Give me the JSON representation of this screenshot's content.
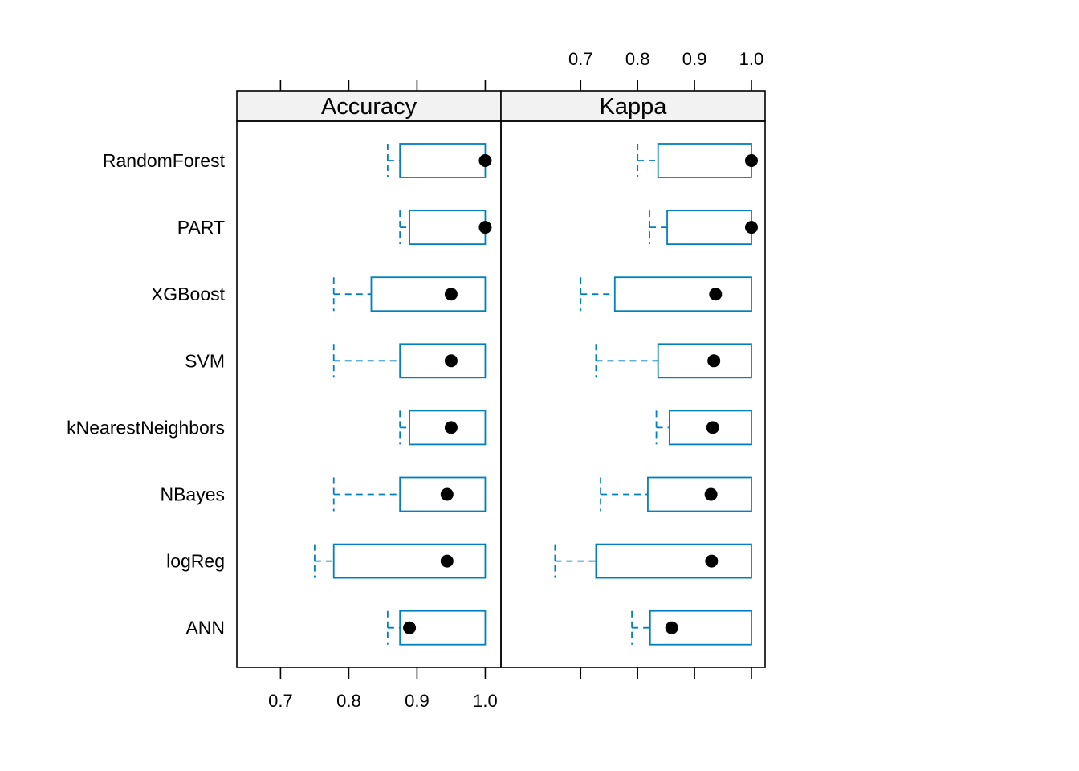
{
  "chart_data": {
    "type": "boxplot",
    "categories": [
      "RandomForest",
      "PART",
      "XGBoost",
      "SVM",
      "kNearestNeighbors",
      "NBayes",
      "logReg",
      "ANN"
    ],
    "panels": [
      {
        "title": "Accuracy",
        "xlim": [
          0.636,
          1.023
        ],
        "ticks": [
          0.7,
          0.8,
          0.9,
          1.0
        ],
        "tick_labels": [
          "0.7",
          "0.8",
          "0.9",
          "1.0"
        ],
        "boxes": [
          {
            "min": 0.857,
            "q1": 0.875,
            "median": 1.0,
            "q3": 1.0,
            "max": 1.0
          },
          {
            "min": 0.875,
            "q1": 0.889,
            "median": 1.0,
            "q3": 1.0,
            "max": 1.0
          },
          {
            "min": 0.778,
            "q1": 0.833,
            "median": 0.95,
            "q3": 1.0,
            "max": 1.0
          },
          {
            "min": 0.778,
            "q1": 0.875,
            "median": 0.95,
            "q3": 1.0,
            "max": 1.0
          },
          {
            "min": 0.875,
            "q1": 0.889,
            "median": 0.95,
            "q3": 1.0,
            "max": 1.0
          },
          {
            "min": 0.778,
            "q1": 0.875,
            "median": 0.944,
            "q3": 1.0,
            "max": 1.0
          },
          {
            "min": 0.75,
            "q1": 0.778,
            "median": 0.944,
            "q3": 1.0,
            "max": 1.0
          },
          {
            "min": 0.857,
            "q1": 0.875,
            "median": 0.889,
            "q3": 1.0,
            "max": 1.0
          }
        ]
      },
      {
        "title": "Kappa",
        "xlim": [
          0.56,
          1.024
        ],
        "ticks": [
          0.7,
          0.8,
          0.9,
          1.0
        ],
        "tick_labels": [
          "0.7",
          "0.8",
          "0.9",
          "1.0"
        ],
        "boxes": [
          {
            "min": 0.8,
            "q1": 0.836,
            "median": 1.0,
            "q3": 1.0,
            "max": 1.0
          },
          {
            "min": 0.821,
            "q1": 0.852,
            "median": 1.0,
            "q3": 1.0,
            "max": 1.0
          },
          {
            "min": 0.7,
            "q1": 0.76,
            "median": 0.937,
            "q3": 1.0,
            "max": 1.0
          },
          {
            "min": 0.727,
            "q1": 0.836,
            "median": 0.934,
            "q3": 1.0,
            "max": 1.0
          },
          {
            "min": 0.833,
            "q1": 0.856,
            "median": 0.932,
            "q3": 1.0,
            "max": 1.0
          },
          {
            "min": 0.735,
            "q1": 0.818,
            "median": 0.929,
            "q3": 1.0,
            "max": 1.0
          },
          {
            "min": 0.655,
            "q1": 0.727,
            "median": 0.93,
            "q3": 1.0,
            "max": 1.0
          },
          {
            "min": 0.79,
            "q1": 0.822,
            "median": 0.86,
            "q3": 1.0,
            "max": 1.0
          }
        ]
      }
    ],
    "box_color": "#0080BF",
    "median_color": "#000000",
    "strip_color": "#F2F2F2",
    "grid": false,
    "legend": "none"
  }
}
